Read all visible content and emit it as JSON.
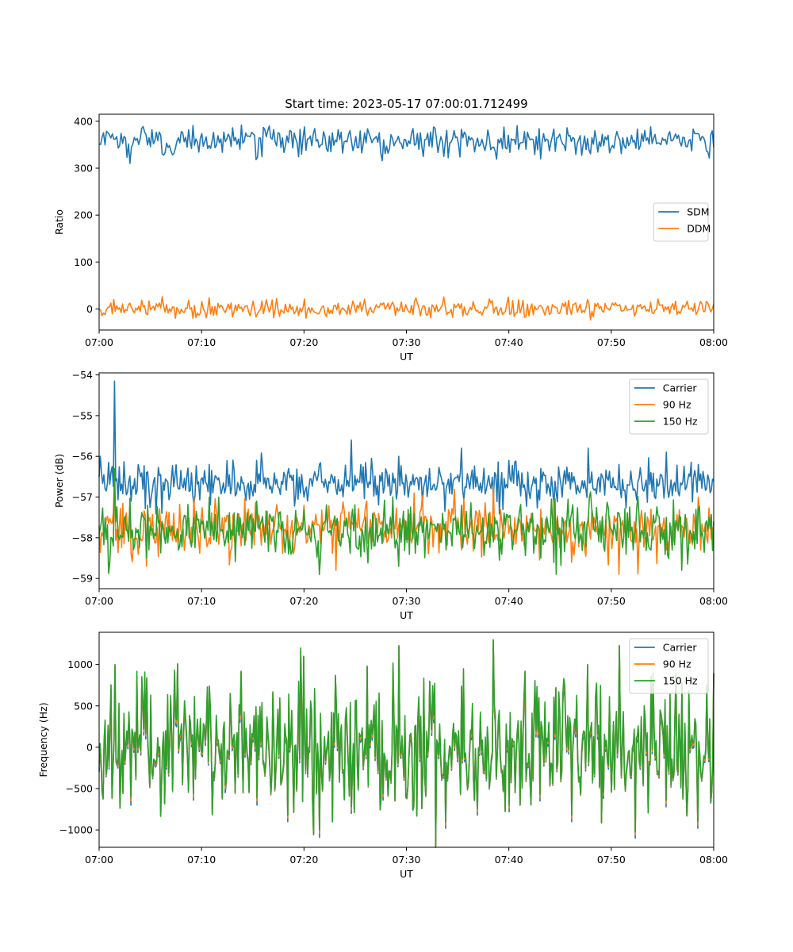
{
  "figure": {
    "title": "Start time: 2023-05-17 07:00:01.712499"
  },
  "chart_data": [
    {
      "type": "line",
      "title": "Start time: 2023-05-17 07:00:01.712499",
      "xlabel": "UT",
      "ylabel": "Ratio",
      "xlim": [
        "07:00",
        "08:00"
      ],
      "xticks": [
        "07:00",
        "07:10",
        "07:20",
        "07:30",
        "07:40",
        "07:50",
        "08:00"
      ],
      "ylim": [
        -45,
        415
      ],
      "yticks": [
        0,
        100,
        200,
        300,
        400
      ],
      "grid": false,
      "legend": "center-right",
      "series": [
        {
          "name": "SDM",
          "color": "#1f77b4",
          "mean": 358,
          "amplitude": 15,
          "values": [
            352,
            362,
            310,
            371,
            330,
            365,
            391,
            348,
            357,
            392,
            318,
            362,
            355,
            388,
            344,
            360,
            358,
            384,
            316,
            368,
            349,
            377,
            355,
            383,
            364,
            345,
            370,
            378,
            320,
            365,
            357,
            363,
            348,
            360,
            359,
            388,
            351,
            366,
            374,
            345
          ]
        },
        {
          "name": "DDM",
          "color": "#ff7f0e",
          "mean": 0,
          "amplitude": 9,
          "values": [
            0,
            -5,
            12,
            -10,
            26,
            -3,
            -20,
            24,
            -8,
            4,
            -17,
            19,
            -6,
            21,
            -10,
            8,
            2,
            -14,
            9,
            -4,
            15,
            -19,
            5,
            11,
            -3,
            -9,
            25,
            -18,
            7,
            3,
            -12,
            20,
            -7,
            9,
            -15,
            14,
            -1,
            8,
            -6,
            10
          ]
        }
      ]
    },
    {
      "type": "line",
      "xlabel": "UT",
      "ylabel": "Power (dB)",
      "xlim": [
        "07:00",
        "08:00"
      ],
      "xticks": [
        "07:00",
        "07:10",
        "07:20",
        "07:30",
        "07:40",
        "07:50",
        "08:00"
      ],
      "ylim": [
        -59.25,
        -53.95
      ],
      "yticks": [
        -59,
        -58,
        -57,
        -56,
        -55,
        -54
      ],
      "grid": false,
      "legend": "top-right",
      "series": [
        {
          "name": "Carrier",
          "color": "#1f77b4",
          "mean": -56.65,
          "amplitude": 0.25,
          "values": [
            -56.5,
            -54.15,
            -57.1,
            -56.4,
            -57.4,
            -56.8,
            -57.2,
            -56.2,
            -56.9,
            -56.5,
            -56.1,
            -56.9,
            -56.3,
            -57.0,
            -56.2,
            -56.8,
            -55.6,
            -56.6,
            -56.9,
            -56.0,
            -56.7,
            -56.3,
            -56.8,
            -55.8,
            -56.5,
            -57.0,
            -56.1,
            -56.7,
            -56.3,
            -56.9,
            -56.4,
            -55.8,
            -56.6,
            -56.2,
            -56.8,
            -56.4,
            -55.9,
            -56.7,
            -56.2,
            -56.6
          ]
        },
        {
          "name": "90 Hz",
          "color": "#ff7f0e",
          "mean": -57.75,
          "amplitude": 0.3,
          "values": [
            -57.7,
            -56.5,
            -58.4,
            -58.7,
            -57.8,
            -58.1,
            -57.0,
            -58.0,
            -57.5,
            -58.2,
            -57.3,
            -57.9,
            -58.3,
            -57.2,
            -57.7,
            -58.8,
            -57.6,
            -57.1,
            -58.1,
            -57.7,
            -56.9,
            -58.0,
            -57.6,
            -58.3,
            -57.4,
            -56.7,
            -57.9,
            -58.2,
            -57.3,
            -57.8,
            -58.6,
            -57.5,
            -57.9,
            -58.9,
            -57.6,
            -57.3,
            -58.3,
            -57.7,
            -57.0,
            -57.8
          ]
        },
        {
          "name": "150 Hz",
          "color": "#2ca02c",
          "mean": -57.8,
          "amplitude": 0.35,
          "values": [
            -57.9,
            -56.3,
            -58.0,
            -58.5,
            -57.6,
            -58.3,
            -57.5,
            -57.0,
            -58.2,
            -57.8,
            -57.1,
            -57.6,
            -58.4,
            -57.3,
            -58.9,
            -57.7,
            -57.5,
            -58.1,
            -57.6,
            -58.7,
            -57.4,
            -57.9,
            -58.3,
            -57.2,
            -57.7,
            -58.1,
            -57.5,
            -57.9,
            -58.5,
            -58.9,
            -57.4,
            -57.6,
            -58.2,
            -57.4,
            -57.9,
            -58.3,
            -57.5,
            -58.8,
            -57.3,
            -57.6
          ]
        }
      ]
    },
    {
      "type": "line",
      "xlabel": "UT",
      "ylabel": "Frequency (Hz)",
      "xlim": [
        "07:00",
        "08:00"
      ],
      "xticks": [
        "07:00",
        "07:10",
        "07:20",
        "07:30",
        "07:40",
        "07:50",
        "08:00"
      ],
      "ylim": [
        -1210,
        1390
      ],
      "yticks": [
        -1000,
        -500,
        0,
        500,
        1000
      ],
      "grid": false,
      "legend": "top-right",
      "series": [
        {
          "name": "Carrier",
          "color": "#1f77b4",
          "mean": -30,
          "amplitude": 380,
          "values": [
            -300,
            980,
            -700,
            820,
            -420,
            1000,
            -640,
            720,
            -550,
            900,
            -700,
            650,
            -900,
            1080,
            -1090,
            850,
            -800,
            960,
            -640,
            1210,
            -720,
            780,
            -980,
            720,
            -820,
            1280,
            -780,
            900,
            -650,
            700,
            -900,
            980,
            -620,
            1210,
            -1100,
            840,
            -720,
            760,
            -980,
            880
          ]
        },
        {
          "name": "90 Hz",
          "color": "#ff7f0e",
          "mean": 0,
          "amplitude": 380,
          "values": [
            -250,
            990,
            -650,
            830,
            -380,
            1000,
            -600,
            730,
            -500,
            910,
            -650,
            660,
            -860,
            1090,
            -1040,
            860,
            -760,
            970,
            -600,
            1220,
            -680,
            790,
            -940,
            730,
            -780,
            1290,
            -740,
            910,
            -610,
            710,
            -860,
            990,
            -580,
            1220,
            -1060,
            850,
            -680,
            770,
            -940,
            890
          ]
        },
        {
          "name": "150 Hz",
          "color": "#2ca02c",
          "mean": 30,
          "amplitude": 380,
          "values": [
            -200,
            1000,
            -600,
            840,
            -340,
            1010,
            -560,
            740,
            -460,
            920,
            -610,
            670,
            -820,
            1100,
            -1000,
            870,
            -720,
            980,
            -560,
            1230,
            -640,
            800,
            -900,
            740,
            -740,
            1300,
            -700,
            920,
            -570,
            720,
            -820,
            1000,
            -540,
            1230,
            -1020,
            860,
            -640,
            780,
            -900,
            900
          ]
        }
      ]
    }
  ]
}
